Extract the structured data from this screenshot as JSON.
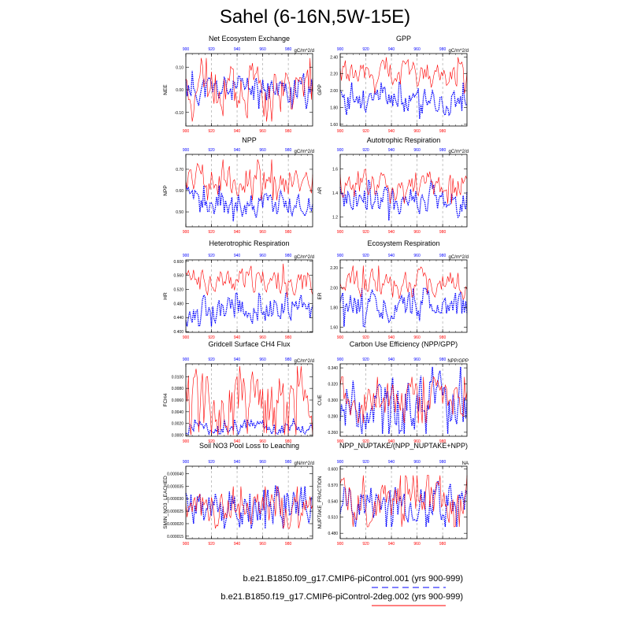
{
  "title": "Sahel (6-16N,5W-15E)",
  "colors": {
    "blue": "#0000ff",
    "red": "#ff0000",
    "grid": "#888888",
    "axis": "#000000"
  },
  "chart_data": [
    {
      "type": "line",
      "title": "Net Ecosystem Exchange",
      "ylabel": "NEE",
      "units": "gC/m^2/d",
      "xlim": [
        900,
        999
      ],
      "ylim": [
        -0.16,
        0.16
      ],
      "yticks": [
        "0.10",
        "0.00",
        "-0.10"
      ],
      "ytick_values": [
        0.1,
        0.0,
        -0.1
      ],
      "seed": 11,
      "series": [
        {
          "name": "blue",
          "mean": 0.0,
          "amp": 0.035,
          "lo": -0.1,
          "hi": 0.09
        },
        {
          "name": "red",
          "mean": 0.0,
          "amp": 0.06,
          "lo": -0.14,
          "hi": 0.14
        }
      ]
    },
    {
      "type": "line",
      "title": "GPP",
      "ylabel": "GPP",
      "units": "gC/m^2/d",
      "xlim": [
        900,
        999
      ],
      "ylim": [
        1.58,
        2.44
      ],
      "yticks": [
        "2.40",
        "2.20",
        "2.00",
        "1.80",
        "1.60"
      ],
      "ytick_values": [
        2.4,
        2.2,
        2.0,
        1.8,
        1.6
      ],
      "seed": 23,
      "series": [
        {
          "name": "blue",
          "mean": 1.88,
          "amp": 0.09,
          "lo": 1.62,
          "hi": 2.1
        },
        {
          "name": "red",
          "mean": 2.18,
          "amp": 0.09,
          "lo": 1.9,
          "hi": 2.44
        }
      ]
    },
    {
      "type": "line",
      "title": "NPP",
      "ylabel": "NPP",
      "units": "gC/m^2/d",
      "xlim": [
        900,
        999
      ],
      "ylim": [
        0.43,
        0.77
      ],
      "yticks": [
        "0.70",
        "0.60",
        "0.50"
      ],
      "ytick_values": [
        0.7,
        0.6,
        0.5
      ],
      "seed": 37,
      "series": [
        {
          "name": "blue",
          "mean": 0.54,
          "amp": 0.035,
          "lo": 0.44,
          "hi": 0.63
        },
        {
          "name": "red",
          "mean": 0.65,
          "amp": 0.04,
          "lo": 0.55,
          "hi": 0.76
        }
      ]
    },
    {
      "type": "line",
      "title": "Autotrophic Respiration",
      "ylabel": "AR",
      "units": "gC/m^2/d",
      "xlim": [
        900,
        999
      ],
      "ylim": [
        1.12,
        1.72
      ],
      "yticks": [
        "1.6",
        "1.4",
        "1.2"
      ],
      "ytick_values": [
        1.6,
        1.4,
        1.2
      ],
      "seed": 41,
      "series": [
        {
          "name": "blue",
          "mean": 1.34,
          "amp": 0.07,
          "lo": 1.15,
          "hi": 1.55
        },
        {
          "name": "red",
          "mean": 1.48,
          "amp": 0.07,
          "lo": 1.28,
          "hi": 1.68
        }
      ]
    },
    {
      "type": "line",
      "title": "Heterotrophic Respiration",
      "ylabel": "HR",
      "units": "gC/m^2/d",
      "xlim": [
        900,
        999
      ],
      "ylim": [
        0.398,
        0.604
      ],
      "yticks": [
        "0.600",
        "0.560",
        "0.520",
        "0.480",
        "0.440",
        "0.400"
      ],
      "ytick_values": [
        0.6,
        0.56,
        0.52,
        0.48,
        0.44,
        0.4
      ],
      "seed": 53,
      "series": [
        {
          "name": "blue",
          "mean": 0.463,
          "amp": 0.02,
          "lo": 0.405,
          "hi": 0.51
        },
        {
          "name": "red",
          "mean": 0.545,
          "amp": 0.02,
          "lo": 0.48,
          "hi": 0.6
        }
      ]
    },
    {
      "type": "line",
      "title": "Ecosystem Respiration",
      "ylabel": "ER",
      "units": "gC/m^2/d",
      "xlim": [
        900,
        999
      ],
      "ylim": [
        1.55,
        2.28
      ],
      "yticks": [
        "2.20",
        "2.00",
        "1.80",
        "1.60"
      ],
      "ytick_values": [
        2.2,
        2.0,
        1.8,
        1.6
      ],
      "seed": 61,
      "series": [
        {
          "name": "blue",
          "mean": 1.8,
          "amp": 0.08,
          "lo": 1.58,
          "hi": 2.05
        },
        {
          "name": "red",
          "mean": 2.03,
          "amp": 0.08,
          "lo": 1.8,
          "hi": 2.26
        }
      ]
    },
    {
      "type": "line",
      "title": "Gridcell Surface CH4 Flux",
      "ylabel": "FCH4",
      "units": "gC/m^2/d",
      "xlim": [
        900,
        999
      ],
      "ylim": [
        -0.0002,
        0.0122
      ],
      "yticks": [
        "0.0100",
        "0.0080",
        "0.0060",
        "0.0040",
        "0.0020",
        "0.0000"
      ],
      "ytick_values": [
        0.01,
        0.008,
        0.006,
        0.004,
        0.002,
        0.0
      ],
      "seed": 71,
      "series": [
        {
          "name": "blue",
          "mean": 0.0012,
          "amp": 0.0006,
          "lo": 0.0002,
          "hi": 0.0028
        },
        {
          "name": "red",
          "mean": 0.004,
          "amp": 0.0035,
          "lo": 0.0,
          "hi": 0.0118
        }
      ]
    },
    {
      "type": "line",
      "title": "Carbon Use Efficiency (NPP/GPP)",
      "ylabel": "CUE",
      "units": "NPP/GPP",
      "xlim": [
        900,
        999
      ],
      "ylim": [
        0.255,
        0.345
      ],
      "yticks": [
        "0.340",
        "0.320",
        "0.300",
        "0.280",
        "0.260"
      ],
      "ytick_values": [
        0.34,
        0.32,
        0.3,
        0.28,
        0.26
      ],
      "seed": 83,
      "series": [
        {
          "name": "blue",
          "mean": 0.298,
          "amp": 0.018,
          "lo": 0.258,
          "hi": 0.342
        },
        {
          "name": "red",
          "mean": 0.3,
          "amp": 0.012,
          "lo": 0.27,
          "hi": 0.335
        }
      ]
    },
    {
      "type": "line",
      "title": "Soil NO3 Pool Loss to Leaching",
      "ylabel": "SMIN_NO3_LEACHED",
      "units": "gN/m^2/d",
      "xlim": [
        900,
        999
      ],
      "ylim": [
        1.4e-05,
        4.3e-05
      ],
      "yticks": [
        "0.000040",
        "0.000035",
        "0.000030",
        "0.000025",
        "0.000020",
        "0.000015"
      ],
      "ytick_values": [
        4e-05,
        3.5e-05,
        3e-05,
        2.5e-05,
        2e-05,
        1.5e-05
      ],
      "seed": 97,
      "series": [
        {
          "name": "blue",
          "mean": 2.8e-05,
          "amp": 4.5e-06,
          "lo": 1.8e-05,
          "hi": 4.25e-05
        },
        {
          "name": "red",
          "mean": 2.65e-05,
          "amp": 3.5e-06,
          "lo": 1.8e-05,
          "hi": 3.6e-05
        }
      ]
    },
    {
      "type": "line",
      "title": "NPP_NUPTAKE/(NPP_NUPTAKE+NPP)",
      "ylabel": "NUPTAKE_FRACTION",
      "units": "NA",
      "xlim": [
        900,
        999
      ],
      "ylim": [
        0.47,
        0.605
      ],
      "yticks": [
        "0.600",
        "0.570",
        "0.540",
        "0.510",
        "0.480"
      ],
      "ytick_values": [
        0.6,
        0.57,
        0.54,
        0.51,
        0.48
      ],
      "seed": 101,
      "series": [
        {
          "name": "blue",
          "mean": 0.54,
          "amp": 0.02,
          "lo": 0.48,
          "hi": 0.6
        },
        {
          "name": "red",
          "mean": 0.54,
          "amp": 0.02,
          "lo": 0.482,
          "hi": 0.595
        }
      ]
    }
  ],
  "xticks": [
    "900",
    "920",
    "940",
    "960",
    "980"
  ],
  "xtick_values": [
    900,
    920,
    940,
    960,
    980
  ],
  "legend": [
    {
      "label": "b.e21.B1850.f09_g17.CMIP6-piControl.001 (yrs 900-999)",
      "color": "#0000ff",
      "style": "dashed"
    },
    {
      "label": "b.e21.B1850.f19_g17.CMIP6-piControl-2deg.002 (yrs 900-999)",
      "color": "#ff0000",
      "style": "solid"
    }
  ]
}
